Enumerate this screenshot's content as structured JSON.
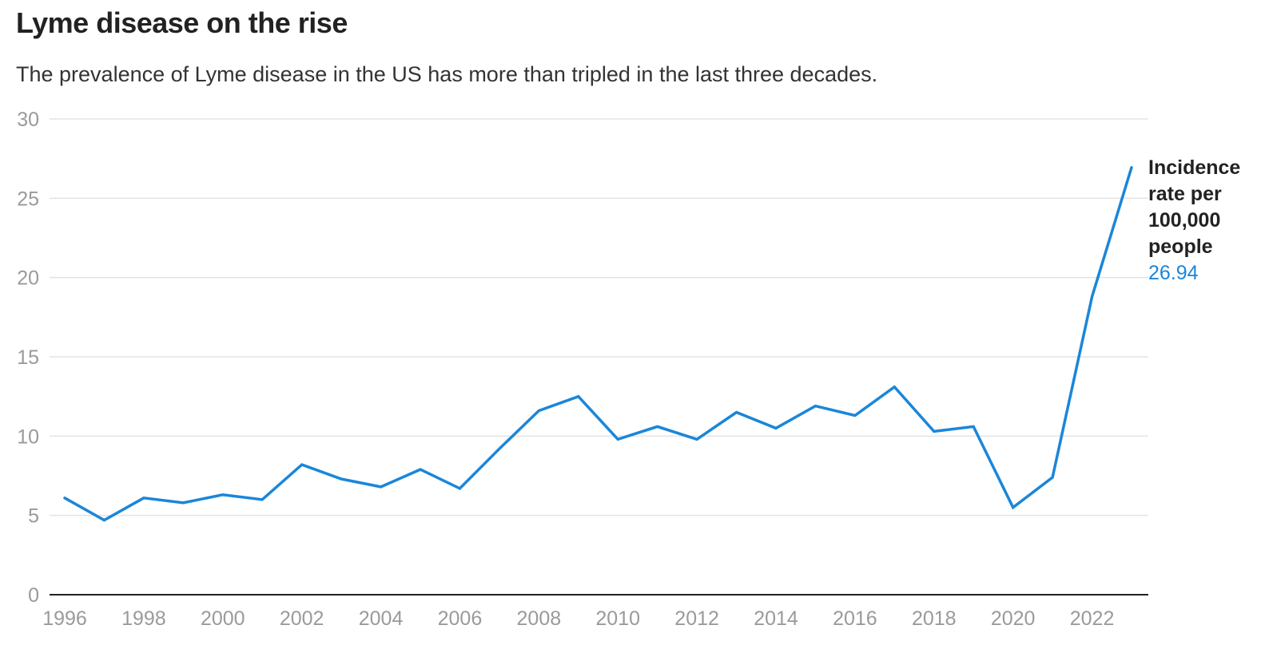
{
  "title": "Lyme disease on the rise",
  "subtitle": "The prevalence of Lyme disease in the US has more than tripled in the last three decades.",
  "chart_data": {
    "type": "line",
    "x": [
      1996,
      1997,
      1998,
      1999,
      2000,
      2001,
      2002,
      2003,
      2004,
      2005,
      2006,
      2007,
      2008,
      2009,
      2010,
      2011,
      2012,
      2013,
      2014,
      2015,
      2016,
      2017,
      2018,
      2019,
      2020,
      2021,
      2022,
      2023
    ],
    "series": [
      {
        "name": "Incidence rate per 100,000 people",
        "values": [
          6.1,
          4.7,
          6.1,
          5.8,
          6.3,
          6.0,
          8.2,
          7.3,
          6.8,
          7.9,
          6.7,
          9.2,
          11.6,
          12.5,
          9.8,
          10.6,
          9.8,
          11.5,
          10.5,
          11.9,
          11.3,
          13.1,
          10.3,
          10.6,
          5.5,
          7.4,
          18.8,
          26.94
        ]
      }
    ],
    "end_label": "Incidence rate per 100,000 people",
    "end_value": "26.94",
    "ylim": [
      0,
      30
    ],
    "yticks": [
      0,
      5,
      10,
      15,
      20,
      25,
      30
    ],
    "xticks": [
      1996,
      1998,
      2000,
      2002,
      2004,
      2006,
      2008,
      2010,
      2012,
      2014,
      2016,
      2018,
      2020,
      2022
    ],
    "grid": true,
    "colors": {
      "line": "#1a86d9",
      "grid": "#e3e3e3",
      "axis": "#222222",
      "tick_text": "#9a9a9a"
    }
  }
}
